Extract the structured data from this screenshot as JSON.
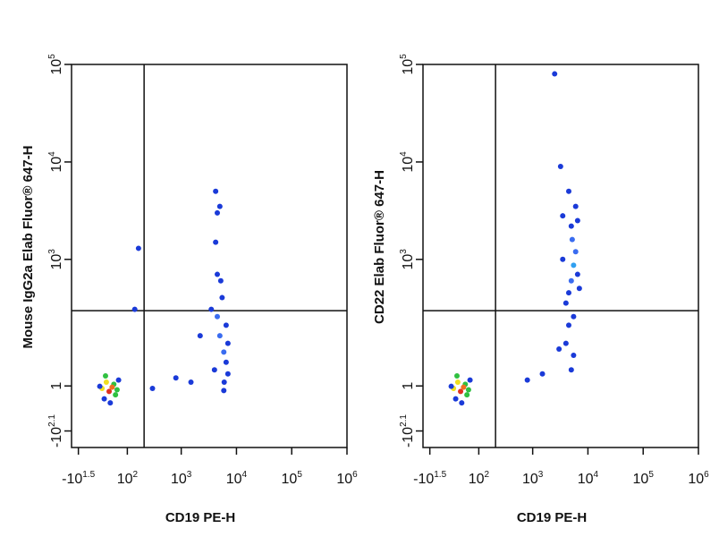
{
  "chart_data": [
    {
      "type": "scatter",
      "xlabel": "CD19 PE-H",
      "ylabel": "Mouse IgG2a Elab Fluor® 647-H",
      "xlim": [
        -50,
        1000000
      ],
      "ylim": [
        -200,
        100000
      ],
      "xticks": [
        {
          "value": -31.6,
          "label": "-10",
          "sup": "1.5"
        },
        {
          "value": 100,
          "label": "10",
          "sup": "2"
        },
        {
          "value": 1000,
          "label": "10",
          "sup": "3"
        },
        {
          "value": 10000,
          "label": "10",
          "sup": "4"
        },
        {
          "value": 100000,
          "label": "10",
          "sup": "5"
        },
        {
          "value": 1000000,
          "label": "10",
          "sup": "6"
        }
      ],
      "yticks": [
        {
          "value": -125.9,
          "label": "-10",
          "sup": "2.1"
        },
        1,
        {
          "value": 1000,
          "label": "10",
          "sup": "3"
        },
        {
          "value": 10000,
          "label": "10",
          "sup": "4"
        },
        {
          "value": 100000,
          "label": "10",
          "sup": "5"
        }
      ],
      "quadrant_gate": {
        "x": 210,
        "y": 290
      },
      "series": [
        {
          "x": [
            37,
            20,
            55,
            30,
            50,
            25,
            60,
            15,
            40,
            65,
            28,
            45,
            5900,
            5000,
            6500,
            4500,
            7000,
            5500,
            5200,
            4000,
            5900,
            7000,
            4500,
            4200,
            5000,
            3500,
            2200,
            6500,
            6000,
            1500,
            800,
            300,
            4200,
            4500,
            165,
            140
          ],
          "y": [
            -12,
            -5,
            -20,
            10,
            5,
            -30,
            -8,
            0,
            -40,
            15,
            25,
            -2,
            90,
            150,
            60,
            250,
            30,
            400,
            600,
            40,
            -10,
            120,
            700,
            1500,
            3500,
            300,
            150,
            200,
            10,
            10,
            20,
            -5,
            5000,
            3000,
            1300,
            300
          ],
          "colors": [
            "#e0301e",
            "#f0e020",
            "#30c040",
            "#f0e020",
            "#30c040",
            "#1a3ad8",
            "#30c040",
            "#1a3ad8",
            "#1a3ad8",
            "#1a3ad8",
            "#30c040",
            "#f07020",
            "#3a6cf0",
            "#3a6cf0",
            "#1a3ad8",
            "#3a6cf0",
            "#1a3ad8",
            "#1a3ad8",
            "#1a3ad8",
            "#1a3ad8",
            "#1a3ad8",
            "#1a3ad8",
            "#1a3ad8",
            "#1a3ad8",
            "#1a3ad8",
            "#1a3ad8",
            "#1a3ad8",
            "#1a3ad8",
            "#1a3ad8",
            "#1a3ad8",
            "#1a3ad8",
            "#1a3ad8",
            "#1a3ad8",
            "#1a3ad8",
            "#1a3ad8",
            "#1a3ad8"
          ]
        }
      ]
    },
    {
      "type": "scatter",
      "xlabel": "CD19 PE-H",
      "ylabel": "CD22 Elab Fluor® 647-H",
      "xlim": [
        -50,
        1000000
      ],
      "ylim": [
        -200,
        100000
      ],
      "xticks": [
        {
          "value": -31.6,
          "label": "-10",
          "sup": "1.5"
        },
        {
          "value": 100,
          "label": "10",
          "sup": "2"
        },
        {
          "value": 1000,
          "label": "10",
          "sup": "3"
        },
        {
          "value": 10000,
          "label": "10",
          "sup": "4"
        },
        {
          "value": 100000,
          "label": "10",
          "sup": "5"
        },
        {
          "value": 1000000,
          "label": "10",
          "sup": "6"
        }
      ],
      "yticks": [
        {
          "value": -125.9,
          "label": "-10",
          "sup": "2.1"
        },
        1,
        {
          "value": 1000,
          "label": "10",
          "sup": "3"
        },
        {
          "value": 10000,
          "label": "10",
          "sup": "4"
        },
        {
          "value": 100000,
          "label": "10",
          "sup": "5"
        }
      ],
      "quadrant_gate": {
        "x": 210,
        "y": 290
      },
      "series": [
        {
          "x": [
            37,
            20,
            55,
            30,
            50,
            25,
            60,
            15,
            40,
            65,
            28,
            45,
            5500,
            5000,
            6000,
            4500,
            6500,
            5200,
            5000,
            4000,
            5500,
            7000,
            4500,
            4000,
            5500,
            5000,
            3500,
            6500,
            6000,
            4500,
            3500,
            3000,
            1500,
            800,
            2500,
            3200
          ],
          "y": [
            -12,
            -5,
            -20,
            10,
            5,
            -30,
            -8,
            0,
            -40,
            15,
            25,
            -2,
            870,
            600,
            1200,
            450,
            700,
            1600,
            2200,
            350,
            250,
            500,
            200,
            120,
            80,
            40,
            1000,
            2500,
            3500,
            5000,
            2800,
            100,
            30,
            15,
            80000,
            9000
          ],
          "colors": [
            "#e0301e",
            "#f0e020",
            "#30c040",
            "#f0e020",
            "#30c040",
            "#1a3ad8",
            "#30c040",
            "#1a3ad8",
            "#1a3ad8",
            "#1a3ad8",
            "#30c040",
            "#f07020",
            "#30a0f0",
            "#3a6cf0",
            "#3a6cf0",
            "#1a3ad8",
            "#1a3ad8",
            "#3a6cf0",
            "#1a3ad8",
            "#1a3ad8",
            "#1a3ad8",
            "#1a3ad8",
            "#1a3ad8",
            "#1a3ad8",
            "#1a3ad8",
            "#1a3ad8",
            "#1a3ad8",
            "#1a3ad8",
            "#1a3ad8",
            "#1a3ad8",
            "#1a3ad8",
            "#1a3ad8",
            "#1a3ad8",
            "#1a3ad8",
            "#1a3ad8",
            "#1a3ad8"
          ]
        }
      ]
    }
  ]
}
